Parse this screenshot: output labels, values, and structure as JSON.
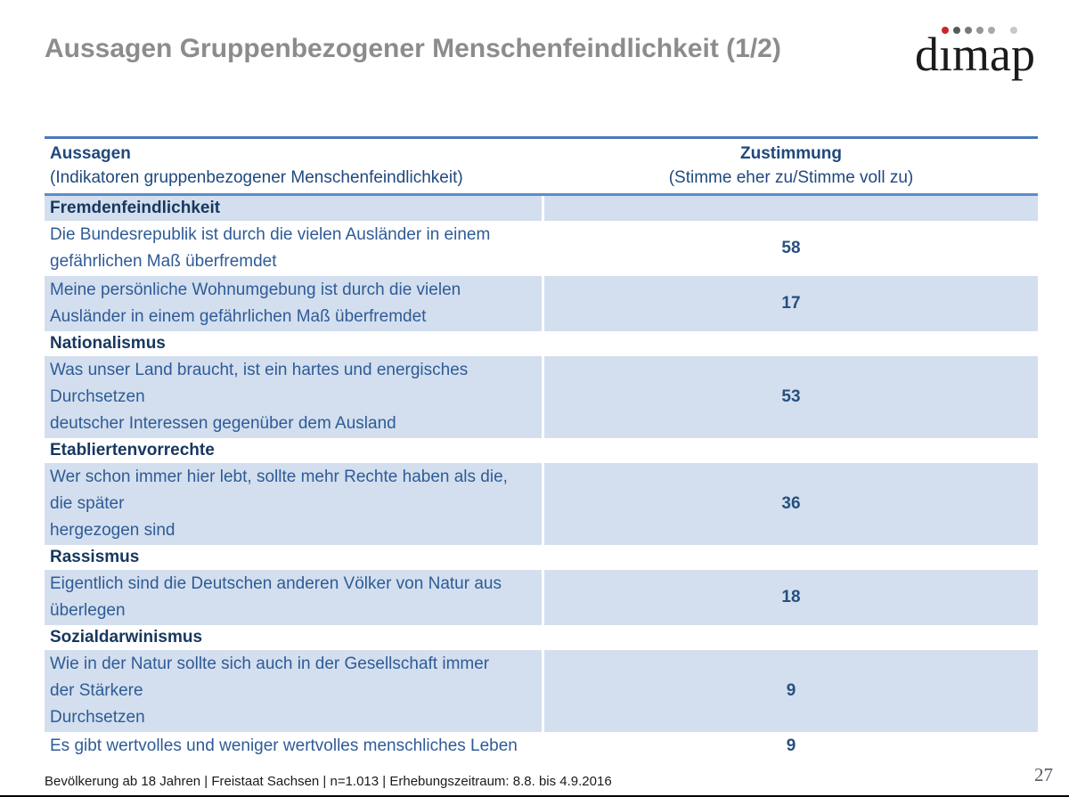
{
  "title": "Aussagen Gruppenbezogener Menschenfeindlichkeit (1/2)",
  "logo": {
    "text": "dimap",
    "dot_colors": [
      "#c9252b",
      "#58595b",
      "#77787b",
      "#939598",
      "#a8aaad",
      "#c7c8ca"
    ]
  },
  "table": {
    "header": {
      "col1_title": "Aussagen",
      "col1_sub": "(Indikatoren gruppenbezogener Menschenfeindlichkeit)",
      "col2_title": "Zustimmung",
      "col2_sub": "(Stimme eher zu/Stimme voll zu)"
    },
    "rows": [
      {
        "type": "category",
        "label": "Fremdenfeindlichkeit",
        "shaded": true
      },
      {
        "type": "statement",
        "label": "Die Bundesrepublik ist durch die vielen Ausländer in einem\ngefährlichen Maß überfremdet",
        "value": "58",
        "shaded": false
      },
      {
        "type": "statement",
        "label": "Meine persönliche Wohnumgebung ist durch die vielen\nAusländer in einem gefährlichen Maß überfremdet",
        "value": "17",
        "shaded": true
      },
      {
        "type": "category",
        "label": "Nationalismus",
        "shaded": false
      },
      {
        "type": "statement",
        "label": "Was unser Land braucht, ist ein hartes und energisches\nDurchsetzen\ndeutscher Interessen gegenüber dem Ausland",
        "value": "53",
        "shaded": true
      },
      {
        "type": "category",
        "label": "Etabliertenvorrechte",
        "shaded": false
      },
      {
        "type": "statement",
        "label": "Wer schon immer hier lebt, sollte mehr Rechte haben als die,\ndie später\nhergezogen sind",
        "value": "36",
        "shaded": true
      },
      {
        "type": "category",
        "label": "Rassismus",
        "shaded": false
      },
      {
        "type": "statement",
        "label": "Eigentlich sind die Deutschen anderen Völker von Natur aus\nüberlegen",
        "value": "18",
        "shaded": true
      },
      {
        "type": "category",
        "label": "Sozialdarwinismus",
        "shaded": false
      },
      {
        "type": "statement",
        "label": "Wie in der Natur sollte sich auch in der Gesellschaft immer\nder Stärkere\nDurchsetzen",
        "value": "9",
        "shaded": true
      },
      {
        "type": "statement",
        "label": "Es gibt wertvolles und weniger wertvolles menschliches Leben",
        "value": "9",
        "shaded": false
      }
    ]
  },
  "footer": {
    "source": "Bevölkerung ab 18 Jahren | Freistaat Sachsen | n=1.013 | Erhebungszeitraum: 8.8. bis 4.9.2016",
    "page_number": "27"
  },
  "colors": {
    "title_text": "#8c8c8c",
    "table_border_top": "#4a79b8",
    "header_separator": "#5d8cc9",
    "band_blue": "#d3dfee",
    "header_text": "#1f497d",
    "category_text": "#17375e",
    "statement_text": "#2e5b97",
    "value_text": "#27507f",
    "logo_red": "#c9252b",
    "footer_text": "#1a1a1a",
    "page_number_text": "#5a5a64"
  }
}
